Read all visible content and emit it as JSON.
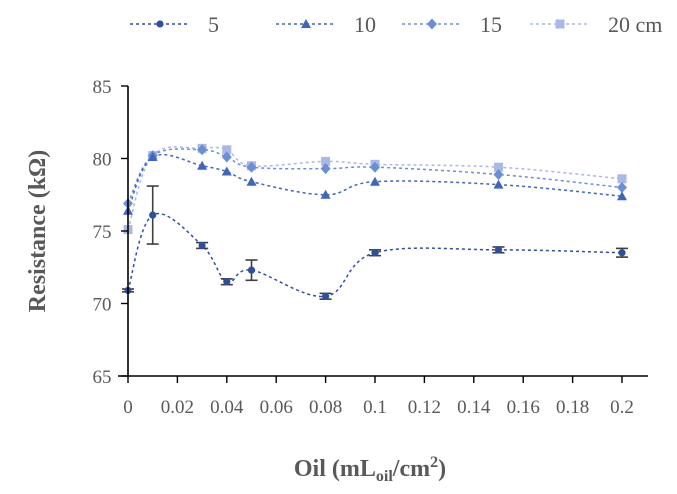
{
  "chart_data": {
    "type": "line",
    "title": "",
    "xlabel": "Oil (mL",
    "xlabel_sub": "oil",
    "xlabel_tail": "/cm",
    "xlabel_sup": "2",
    "xlabel_close": ")",
    "ylabel": "Resistance (kΩ)",
    "xlim": [
      0,
      0.2
    ],
    "ylim": [
      65,
      85
    ],
    "x_ticks": [
      0,
      0.02,
      0.04,
      0.06,
      0.08,
      0.1,
      0.12,
      0.14,
      0.16,
      0.18,
      0.2
    ],
    "x_tick_labels": [
      "0",
      "0.02",
      "0.04",
      "0.06",
      "0.08",
      "0.1",
      "0.12",
      "0.14",
      "0.16",
      "0.18",
      "0.2"
    ],
    "y_ticks": [
      65,
      70,
      75,
      80,
      85
    ],
    "y_tick_labels": [
      "65",
      "70",
      "75",
      "80",
      "85"
    ],
    "grid": false,
    "legend_position": "top",
    "x": [
      0,
      0.01,
      0.03,
      0.04,
      0.05,
      0.08,
      0.1,
      0.15,
      0.2
    ],
    "series": [
      {
        "name": "5",
        "marker": "circle",
        "color": "#2e4f9e",
        "values": [
          70.9,
          76.1,
          74.0,
          71.5,
          72.3,
          70.5,
          73.5,
          73.7,
          73.5
        ],
        "errors": [
          0.1,
          2.0,
          0.2,
          0.2,
          0.7,
          0.2,
          0.2,
          0.2,
          0.3
        ]
      },
      {
        "name": "10",
        "marker": "triangle",
        "color": "#3e66bd",
        "values": [
          76.4,
          80.1,
          79.5,
          79.1,
          78.4,
          77.5,
          78.4,
          78.2,
          77.4
        ],
        "errors": [
          0,
          0,
          0,
          0,
          0,
          0,
          0,
          0,
          0
        ]
      },
      {
        "name": "15",
        "marker": "diamond",
        "color": "#6b8fd6",
        "values": [
          76.9,
          80.2,
          80.6,
          80.1,
          79.4,
          79.3,
          79.4,
          78.9,
          78.0
        ],
        "errors": [
          0,
          0,
          0,
          0,
          0,
          0,
          0,
          0,
          0
        ]
      },
      {
        "name": "20 cm",
        "marker": "square",
        "color": "#aab8e6",
        "values": [
          75.1,
          80.2,
          80.7,
          80.6,
          79.5,
          79.8,
          79.6,
          79.4,
          78.6
        ],
        "errors": [
          0,
          0,
          0,
          0,
          0,
          0,
          0,
          0,
          0
        ]
      }
    ]
  }
}
